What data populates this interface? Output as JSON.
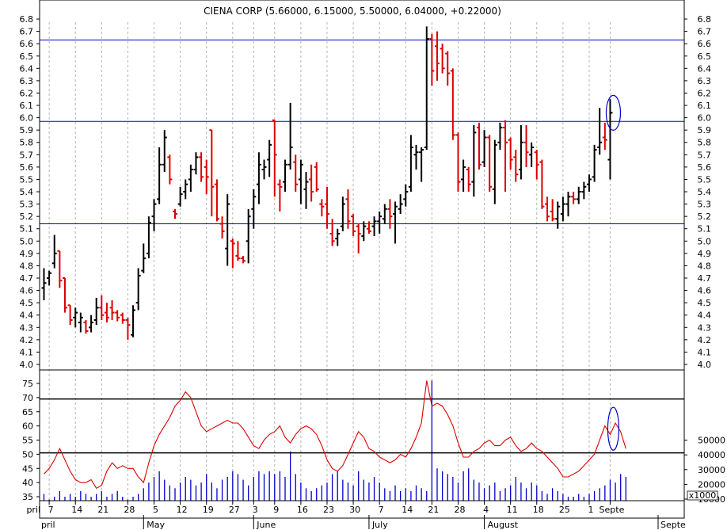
{
  "chart_data": [
    {
      "type": "ohlc",
      "title": "CIENA CORP (5.66000, 6.15000, 5.50000, 6.04000, +0.22000)",
      "ylim": [
        4.0,
        6.8
      ],
      "y_ticks": [
        "4.0",
        "4.1",
        "4.2",
        "4.3",
        "4.4",
        "4.5",
        "4.6",
        "4.7",
        "4.8",
        "4.9",
        "5.0",
        "5.1",
        "5.2",
        "5.3",
        "5.4",
        "5.5",
        "5.6",
        "5.7",
        "5.8",
        "5.9",
        "6.0",
        "6.1",
        "6.2",
        "6.3",
        "6.4",
        "6.5",
        "6.6",
        "6.7",
        "6.8"
      ],
      "horizontal_lines": [
        6.63,
        5.97,
        5.14
      ],
      "up_color": "#000000",
      "down_color": "#dd0000",
      "line_color": "#0000cc",
      "annotation": "circle around last bar",
      "bars": [
        {
          "o": 4.62,
          "h": 4.78,
          "l": 4.52,
          "c": 4.66
        },
        {
          "o": 4.7,
          "h": 4.76,
          "l": 4.64,
          "c": 4.74
        },
        {
          "o": 4.82,
          "h": 5.05,
          "l": 4.78,
          "c": 4.9
        },
        {
          "o": 4.92,
          "h": 4.92,
          "l": 4.62,
          "c": 4.68
        },
        {
          "o": 4.7,
          "h": 4.7,
          "l": 4.42,
          "c": 4.46
        },
        {
          "o": 4.48,
          "h": 4.48,
          "l": 4.32,
          "c": 4.36
        },
        {
          "o": 4.38,
          "h": 4.46,
          "l": 4.3,
          "c": 4.42
        },
        {
          "o": 4.34,
          "h": 4.42,
          "l": 4.26,
          "c": 4.38
        },
        {
          "o": 4.34,
          "h": 4.36,
          "l": 4.25,
          "c": 4.27
        },
        {
          "o": 4.3,
          "h": 4.4,
          "l": 4.26,
          "c": 4.34
        },
        {
          "o": 4.36,
          "h": 4.54,
          "l": 4.32,
          "c": 4.46
        },
        {
          "o": 4.46,
          "h": 4.56,
          "l": 4.36,
          "c": 4.4
        },
        {
          "o": 4.42,
          "h": 4.5,
          "l": 4.34,
          "c": 4.38
        },
        {
          "o": 4.46,
          "h": 4.52,
          "l": 4.36,
          "c": 4.42
        },
        {
          "o": 4.42,
          "h": 4.44,
          "l": 4.35,
          "c": 4.38
        },
        {
          "o": 4.4,
          "h": 4.42,
          "l": 4.33,
          "c": 4.36
        },
        {
          "o": 4.36,
          "h": 4.38,
          "l": 4.2,
          "c": 4.32
        },
        {
          "o": 4.24,
          "h": 4.48,
          "l": 4.22,
          "c": 4.44
        },
        {
          "o": 4.5,
          "h": 4.78,
          "l": 4.44,
          "c": 4.72
        },
        {
          "o": 4.76,
          "h": 4.98,
          "l": 4.74,
          "c": 4.86
        },
        {
          "o": 4.9,
          "h": 5.2,
          "l": 4.86,
          "c": 5.15
        },
        {
          "o": 5.2,
          "h": 5.34,
          "l": 5.08,
          "c": 5.3
        },
        {
          "o": 5.34,
          "h": 5.76,
          "l": 5.3,
          "c": 5.62
        },
        {
          "o": 5.62,
          "h": 5.9,
          "l": 5.56,
          "c": 5.84
        },
        {
          "o": 5.68,
          "h": 5.7,
          "l": 5.46,
          "c": 5.5
        },
        {
          "o": 5.24,
          "h": 5.26,
          "l": 5.18,
          "c": 5.22
        },
        {
          "o": 5.3,
          "h": 5.44,
          "l": 5.28,
          "c": 5.38
        },
        {
          "o": 5.4,
          "h": 5.5,
          "l": 5.34,
          "c": 5.46
        },
        {
          "o": 5.5,
          "h": 5.62,
          "l": 5.4,
          "c": 5.58
        },
        {
          "o": 5.58,
          "h": 5.72,
          "l": 5.54,
          "c": 5.68
        },
        {
          "o": 5.68,
          "h": 5.72,
          "l": 5.48,
          "c": 5.52
        },
        {
          "o": 5.6,
          "h": 5.66,
          "l": 5.38,
          "c": 5.52
        },
        {
          "o": 5.9,
          "h": 5.9,
          "l": 5.2,
          "c": 5.44
        },
        {
          "o": 5.46,
          "h": 5.5,
          "l": 5.16,
          "c": 5.18
        },
        {
          "o": 5.14,
          "h": 5.2,
          "l": 5.02,
          "c": 5.08
        },
        {
          "o": 4.94,
          "h": 5.38,
          "l": 4.8,
          "c": 5.3
        },
        {
          "o": 5.0,
          "h": 5.02,
          "l": 4.78,
          "c": 4.98
        },
        {
          "o": 4.88,
          "h": 5.0,
          "l": 4.84,
          "c": 4.86
        },
        {
          "o": 4.86,
          "h": 4.88,
          "l": 4.82,
          "c": 4.84
        },
        {
          "o": 5.0,
          "h": 5.26,
          "l": 4.82,
          "c": 5.2
        },
        {
          "o": 5.26,
          "h": 5.42,
          "l": 5.1,
          "c": 5.36
        },
        {
          "o": 5.46,
          "h": 5.72,
          "l": 5.3,
          "c": 5.62
        },
        {
          "o": 5.58,
          "h": 5.66,
          "l": 5.5,
          "c": 5.6
        },
        {
          "o": 5.66,
          "h": 5.82,
          "l": 5.52,
          "c": 5.78
        },
        {
          "o": 5.98,
          "h": 5.98,
          "l": 5.36,
          "c": 5.7
        },
        {
          "o": 5.46,
          "h": 5.5,
          "l": 5.24,
          "c": 5.44
        },
        {
          "o": 5.48,
          "h": 5.66,
          "l": 5.4,
          "c": 5.62
        },
        {
          "o": 5.62,
          "h": 6.12,
          "l": 5.58,
          "c": 5.76
        },
        {
          "o": 5.64,
          "h": 5.7,
          "l": 5.4,
          "c": 5.46
        },
        {
          "o": 5.5,
          "h": 5.66,
          "l": 5.3,
          "c": 5.62
        },
        {
          "o": 5.42,
          "h": 5.56,
          "l": 5.26,
          "c": 5.48
        },
        {
          "o": 5.5,
          "h": 5.62,
          "l": 5.32,
          "c": 5.4
        },
        {
          "o": 5.6,
          "h": 5.64,
          "l": 5.4,
          "c": 5.42
        },
        {
          "o": 5.3,
          "h": 5.34,
          "l": 5.2,
          "c": 5.28
        },
        {
          "o": 5.3,
          "h": 5.44,
          "l": 5.1,
          "c": 5.22
        },
        {
          "o": 5.06,
          "h": 5.18,
          "l": 4.96,
          "c": 5.0
        },
        {
          "o": 5.02,
          "h": 5.1,
          "l": 4.96,
          "c": 5.06
        },
        {
          "o": 5.12,
          "h": 5.36,
          "l": 5.08,
          "c": 5.3
        },
        {
          "o": 5.34,
          "h": 5.42,
          "l": 5.1,
          "c": 5.16
        },
        {
          "o": 5.2,
          "h": 5.22,
          "l": 5.04,
          "c": 5.08
        },
        {
          "o": 5.12,
          "h": 5.14,
          "l": 4.9,
          "c": 5.06
        },
        {
          "o": 5.04,
          "h": 5.16,
          "l": 5.0,
          "c": 5.12
        },
        {
          "o": 5.1,
          "h": 5.16,
          "l": 5.06,
          "c": 5.08
        },
        {
          "o": 5.12,
          "h": 5.2,
          "l": 5.04,
          "c": 5.16
        },
        {
          "o": 5.16,
          "h": 5.24,
          "l": 5.06,
          "c": 5.2
        },
        {
          "o": 5.18,
          "h": 5.3,
          "l": 5.14,
          "c": 5.26
        },
        {
          "o": 5.26,
          "h": 5.34,
          "l": 5.1,
          "c": 5.2
        },
        {
          "o": 5.22,
          "h": 5.32,
          "l": 4.98,
          "c": 5.28
        },
        {
          "o": 5.26,
          "h": 5.38,
          "l": 5.22,
          "c": 5.3
        },
        {
          "o": 5.34,
          "h": 5.46,
          "l": 5.28,
          "c": 5.4
        },
        {
          "o": 5.44,
          "h": 5.86,
          "l": 5.4,
          "c": 5.76
        },
        {
          "o": 5.7,
          "h": 5.78,
          "l": 5.58,
          "c": 5.72
        },
        {
          "o": 5.72,
          "h": 5.76,
          "l": 5.48,
          "c": 5.74
        },
        {
          "o": 5.76,
          "h": 6.74,
          "l": 5.74,
          "c": 6.64
        },
        {
          "o": 6.64,
          "h": 6.68,
          "l": 6.26,
          "c": 6.38
        },
        {
          "o": 6.58,
          "h": 6.7,
          "l": 6.3,
          "c": 6.44
        },
        {
          "o": 6.56,
          "h": 6.6,
          "l": 6.36,
          "c": 6.4
        },
        {
          "o": 6.52,
          "h": 6.54,
          "l": 6.26,
          "c": 6.36
        },
        {
          "o": 6.38,
          "h": 6.4,
          "l": 5.82,
          "c": 5.86
        },
        {
          "o": 5.86,
          "h": 5.88,
          "l": 5.4,
          "c": 5.48
        },
        {
          "o": 5.5,
          "h": 5.66,
          "l": 5.4,
          "c": 5.6
        },
        {
          "o": 5.58,
          "h": 5.6,
          "l": 5.4,
          "c": 5.46
        },
        {
          "o": 5.48,
          "h": 5.94,
          "l": 5.36,
          "c": 5.88
        },
        {
          "o": 5.92,
          "h": 5.96,
          "l": 5.58,
          "c": 5.62
        },
        {
          "o": 5.64,
          "h": 5.9,
          "l": 5.6,
          "c": 5.84
        },
        {
          "o": 5.84,
          "h": 5.86,
          "l": 5.4,
          "c": 5.44
        },
        {
          "o": 5.42,
          "h": 5.82,
          "l": 5.3,
          "c": 5.78
        },
        {
          "o": 5.8,
          "h": 5.96,
          "l": 5.74,
          "c": 5.92
        },
        {
          "o": 5.92,
          "h": 5.98,
          "l": 5.4,
          "c": 5.8
        },
        {
          "o": 5.82,
          "h": 5.84,
          "l": 5.58,
          "c": 5.66
        },
        {
          "o": 5.68,
          "h": 5.74,
          "l": 5.48,
          "c": 5.54
        },
        {
          "o": 5.58,
          "h": 5.94,
          "l": 5.5,
          "c": 5.8
        },
        {
          "o": 5.8,
          "h": 5.94,
          "l": 5.6,
          "c": 5.72
        },
        {
          "o": 5.7,
          "h": 5.8,
          "l": 5.6,
          "c": 5.76
        },
        {
          "o": 5.72,
          "h": 5.74,
          "l": 5.5,
          "c": 5.62
        },
        {
          "o": 5.64,
          "h": 5.66,
          "l": 5.26,
          "c": 5.28
        },
        {
          "o": 5.3,
          "h": 5.36,
          "l": 5.16,
          "c": 5.2
        },
        {
          "o": 5.24,
          "h": 5.34,
          "l": 5.16,
          "c": 5.18
        },
        {
          "o": 5.18,
          "h": 5.32,
          "l": 5.1,
          "c": 5.28
        },
        {
          "o": 5.22,
          "h": 5.36,
          "l": 5.16,
          "c": 5.3
        },
        {
          "o": 5.3,
          "h": 5.4,
          "l": 5.2,
          "c": 5.36
        },
        {
          "o": 5.36,
          "h": 5.4,
          "l": 5.3,
          "c": 5.34
        },
        {
          "o": 5.34,
          "h": 5.44,
          "l": 5.3,
          "c": 5.4
        },
        {
          "o": 5.4,
          "h": 5.48,
          "l": 5.34,
          "c": 5.44
        },
        {
          "o": 5.46,
          "h": 5.54,
          "l": 5.4,
          "c": 5.5
        },
        {
          "o": 5.52,
          "h": 5.78,
          "l": 5.48,
          "c": 5.74
        },
        {
          "o": 5.76,
          "h": 6.08,
          "l": 5.7,
          "c": 5.8
        },
        {
          "o": 5.84,
          "h": 5.96,
          "l": 5.74,
          "c": 5.82
        },
        {
          "o": 5.66,
          "h": 6.15,
          "l": 5.5,
          "c": 6.04
        }
      ]
    },
    {
      "type": "bar+line",
      "left_ylim": [
        33,
        78
      ],
      "left_ticks": [
        "35",
        "40",
        "45",
        "50",
        "55",
        "60",
        "65",
        "70",
        "75"
      ],
      "right_ticks": [
        "10000",
        "20000",
        "30000",
        "40000",
        "50000"
      ],
      "right_unit": "x1000",
      "horizontal_lines": [
        69.5,
        50.5
      ],
      "bar_color": "#0000cc",
      "line_color": "#dd0000",
      "volume_scaled": [
        36,
        34,
        35,
        37,
        35,
        36,
        35,
        37,
        36,
        35,
        36,
        37,
        35,
        36,
        37,
        35,
        34,
        35,
        36,
        38,
        40,
        42,
        44,
        41,
        39,
        38,
        40,
        42,
        41,
        39,
        40,
        43,
        40,
        38,
        41,
        42,
        44,
        43,
        41,
        39,
        42,
        44,
        43,
        44,
        43,
        44,
        42,
        51,
        43,
        40,
        38,
        37,
        38,
        39,
        40,
        43,
        44,
        41,
        40,
        39,
        44,
        41,
        40,
        42,
        40,
        38,
        37,
        39,
        37,
        38,
        37,
        39,
        38,
        37,
        76,
        45,
        44,
        43,
        42,
        40,
        44,
        45,
        41,
        40,
        38,
        39,
        40,
        37,
        38,
        39,
        42,
        40,
        38,
        40,
        39,
        37,
        36,
        38,
        37,
        36,
        35,
        35,
        36,
        35,
        36,
        37,
        38,
        39,
        41,
        40,
        43,
        42
      ],
      "indicator": [
        43,
        45,
        48,
        52,
        48,
        44,
        41,
        40,
        40,
        41,
        38,
        39,
        44,
        47,
        45,
        46,
        45,
        45,
        42,
        40,
        47,
        53,
        57,
        60,
        63,
        67,
        69,
        72,
        70,
        65,
        60,
        58,
        59,
        60,
        61,
        62,
        61,
        61,
        59,
        56,
        53,
        52,
        55,
        57,
        58,
        60,
        56,
        54,
        57,
        59,
        60,
        59,
        57,
        53,
        48,
        45,
        44,
        46,
        50,
        54,
        58,
        56,
        52,
        51,
        49,
        48,
        47,
        48,
        50,
        49,
        52,
        56,
        61,
        76,
        67,
        68,
        67,
        64,
        60,
        54,
        49,
        49,
        51,
        52,
        54,
        55,
        53,
        53,
        55,
        56,
        53,
        51,
        52,
        54,
        52,
        51,
        49,
        47,
        45,
        42,
        42,
        43,
        44,
        46,
        48,
        50,
        55,
        60,
        57,
        61,
        58,
        52
      ]
    }
  ],
  "x_labels": [
    {
      "text": "pril",
      "bar": -2
    },
    {
      "text": "7",
      "bar": 1
    },
    {
      "text": "14",
      "bar": 6
    },
    {
      "text": "21",
      "bar": 11
    },
    {
      "text": "28",
      "bar": 16
    },
    {
      "text": "5",
      "bar": 21
    },
    {
      "text": "12",
      "bar": 26
    },
    {
      "text": "19",
      "bar": 31
    },
    {
      "text": "27",
      "bar": 36
    },
    {
      "text": "3",
      "bar": 40
    },
    {
      "text": "9",
      "bar": 44
    },
    {
      "text": "16",
      "bar": 49
    },
    {
      "text": "23",
      "bar": 54
    },
    {
      "text": "30",
      "bar": 59
    },
    {
      "text": "7",
      "bar": 64
    },
    {
      "text": "14",
      "bar": 69
    },
    {
      "text": "21",
      "bar": 74
    },
    {
      "text": "28",
      "bar": 79
    },
    {
      "text": "4",
      "bar": 84
    },
    {
      "text": "11",
      "bar": 89
    },
    {
      "text": "18",
      "bar": 94
    },
    {
      "text": "25",
      "bar": 99
    },
    {
      "text": "1",
      "bar": 104
    },
    {
      "text": "Septe",
      "bar": 108
    }
  ],
  "month_labels": [
    {
      "text": "May",
      "bar": 19
    },
    {
      "text": "June",
      "bar": 40
    },
    {
      "text": "July",
      "bar": 62
    },
    {
      "text": "August",
      "bar": 84
    }
  ]
}
